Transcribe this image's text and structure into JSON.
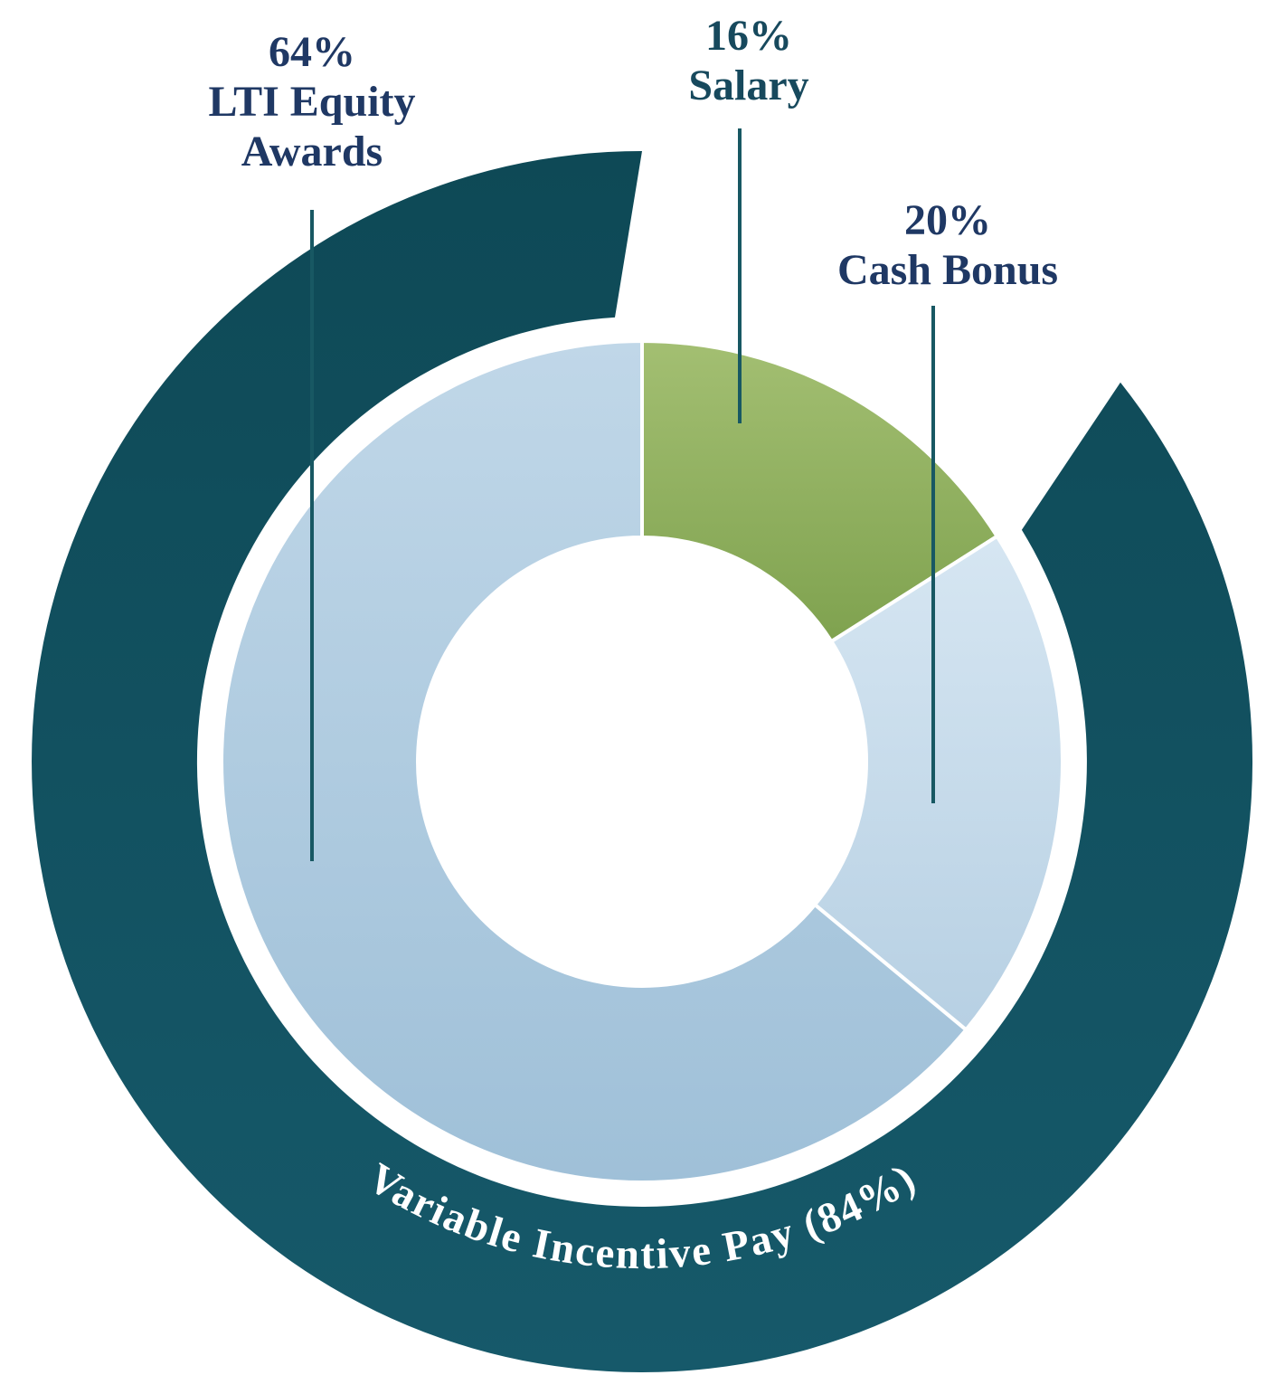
{
  "chart_data": {
    "type": "pie",
    "donut": true,
    "direction": "clockwise",
    "start_angle_deg": 0,
    "background_color": "#ffffff",
    "leader_line_color": "#185863",
    "segments": [
      {
        "id": "salary",
        "label": "Salary",
        "value": 16,
        "display": "16%\nSalary",
        "color": "#7fa24f",
        "color_light": "#a3bf72",
        "label_color": "#17495d"
      },
      {
        "id": "cash-bonus",
        "label": "Cash Bonus",
        "value": 20,
        "display": "20%\nCash Bonus",
        "color": "#b7d0e3",
        "color_light": "#d6e6f2",
        "label_color": "#1f3864"
      },
      {
        "id": "lti-equity-awards",
        "label": "LTI Equity Awards",
        "value": 64,
        "display": "64%\nLTI Equity\nAwards",
        "color": "#9fc0d8",
        "color_light": "#c0d7e8",
        "label_color": "#1f3864"
      }
    ],
    "outer_arc": {
      "label": "Variable Incentive Pay (84%)",
      "value": 84,
      "color": "#0e4956",
      "color_light": "#16596a",
      "text_color": "#ffffff"
    }
  }
}
